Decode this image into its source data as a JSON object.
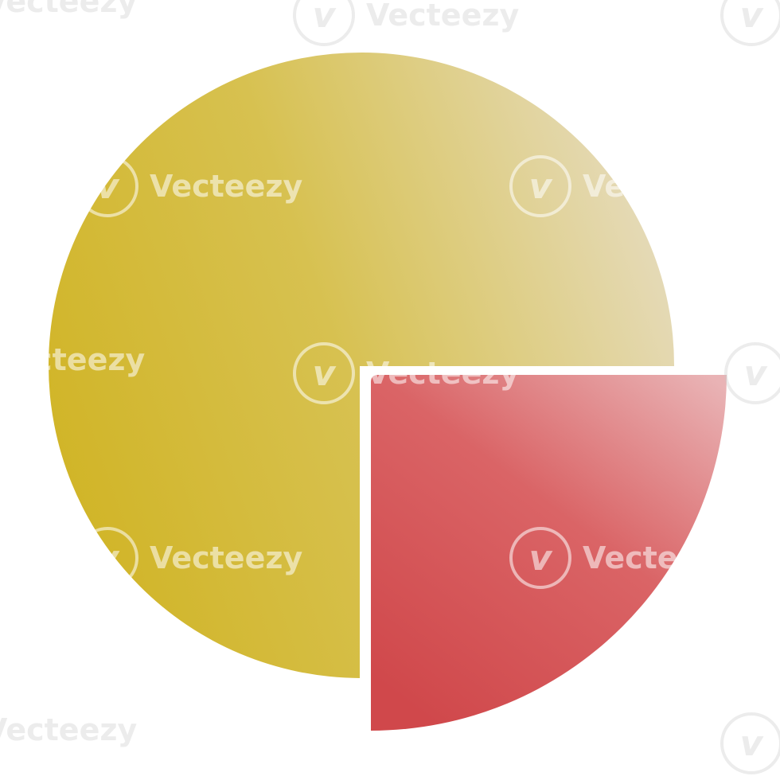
{
  "image": {
    "kind": "3d-pie-chart-icon",
    "background": "#ffffff"
  },
  "slices": [
    {
      "name": "major-slice",
      "share": 0.75,
      "color_main": "#d3b832",
      "color_highlight": "#e6d9b6",
      "exploded": false
    },
    {
      "name": "minor-slice",
      "share": 0.25,
      "color_main": "#d44d50",
      "color_highlight": "#e8aeb0",
      "exploded": true
    }
  ],
  "watermark": {
    "text": "Vecteezy",
    "logo_glyph": "v"
  }
}
